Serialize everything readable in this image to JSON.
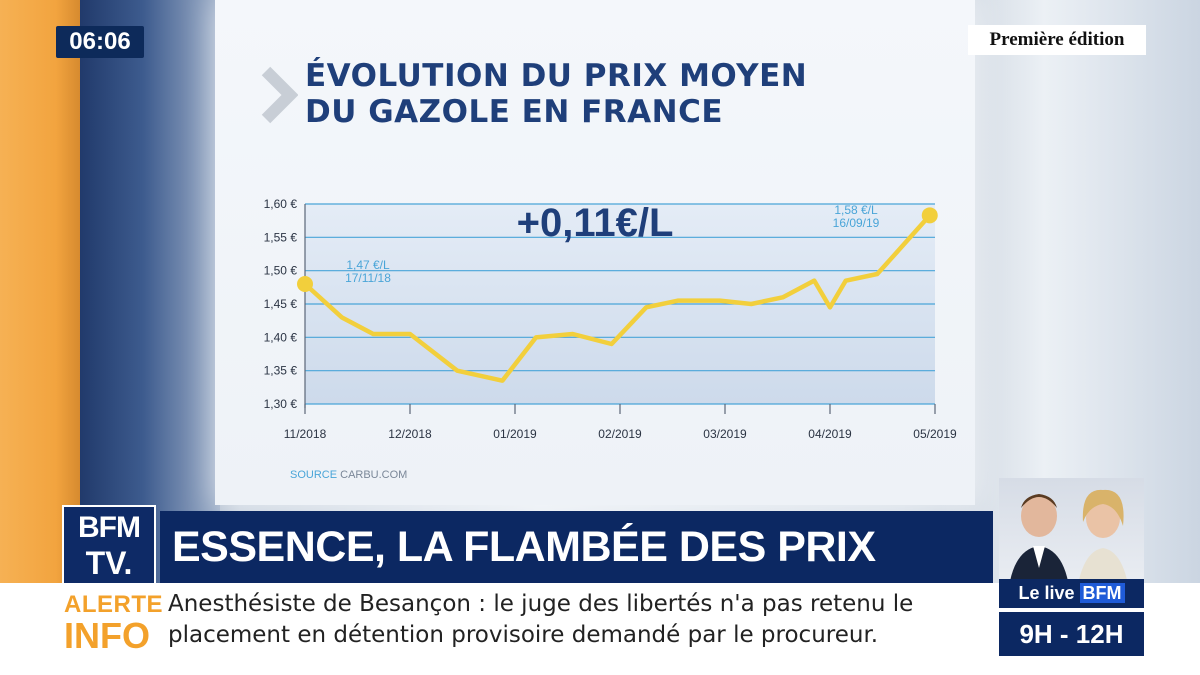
{
  "overlay": {
    "clock": "06:06",
    "program": "Première édition"
  },
  "graphic": {
    "title_line1": "ÉVOLUTION DU PRIX MOYEN",
    "title_line2": "DU GAZOLE EN FRANCE",
    "source_label": "SOURCE",
    "source_value": "CARBU.COM"
  },
  "chart_data": {
    "type": "line",
    "title": "ÉVOLUTION DU PRIX MOYEN DU GAZOLE EN FRANCE",
    "ylim": [
      1.3,
      1.6
    ],
    "yticks": [
      "1,60 €",
      "1,55 €",
      "1,50 €",
      "1,45 €",
      "1,40 €",
      "1,35 €",
      "1,30 €"
    ],
    "ytick_values": [
      1.6,
      1.55,
      1.5,
      1.45,
      1.4,
      1.35,
      1.3
    ],
    "xticks": [
      "11/2018",
      "12/2018",
      "01/2019",
      "02/2019",
      "03/2019",
      "04/2019",
      "05/2019"
    ],
    "grid": true,
    "series": [
      {
        "color": "#f2cf3c",
        "x": [
          0,
          0.35,
          0.65,
          1.0,
          1.45,
          1.88,
          2.2,
          2.55,
          2.92,
          3.25,
          3.55,
          3.95,
          4.25,
          4.55,
          4.85,
          5.0,
          5.15,
          5.45,
          5.65,
          5.95
        ],
        "y": [
          1.48,
          1.43,
          1.405,
          1.405,
          1.35,
          1.335,
          1.4,
          1.405,
          1.39,
          1.445,
          1.455,
          1.455,
          1.45,
          1.46,
          1.485,
          1.445,
          1.485,
          1.495,
          1.53,
          1.583
        ]
      }
    ],
    "headline_label": "+0,11€/L",
    "annotations": [
      {
        "text_line1": "1,47 €/L",
        "text_line2": "17/11/18"
      },
      {
        "text_line1": "1,58 €/L",
        "text_line2": "16/09/19"
      }
    ]
  },
  "banner": {
    "logo_line1": "BFM",
    "logo_line2": "TV.",
    "headline": "ESSENCE, LA FLAMBÉE DES PRIX CONTINUE",
    "headline_dot": "."
  },
  "ticker": {
    "alert_word1": "ALERTE",
    "alert_word2": "INFO",
    "text": "Anesthésiste de Besançon : le juge des libertés n'a pas retenu le placement en détention provisoire demandé par le procureur."
  },
  "show_badge": {
    "label_prefix": "Le live",
    "label_brand": "BFM",
    "hours": "9H - 12H"
  },
  "colors": {
    "navy": "#0c2862",
    "title_blue": "#1f3f7a",
    "line_yellow": "#f2cf3c",
    "alert_orange": "#f3a12b",
    "annotation_blue": "#4aa5d8"
  }
}
